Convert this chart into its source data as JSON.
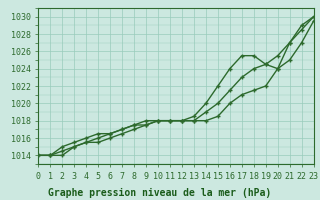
{
  "title": "Graphe pression niveau de la mer (hPa)",
  "xlabel_hours": [
    0,
    1,
    2,
    3,
    4,
    5,
    6,
    7,
    8,
    9,
    10,
    11,
    12,
    13,
    14,
    15,
    16,
    17,
    18,
    19,
    20,
    21,
    22,
    23
  ],
  "line1": [
    1014,
    1014,
    1014,
    1015,
    1015.5,
    1015.5,
    1016,
    1016.5,
    1017,
    1017.5,
    1018,
    1018,
    1018,
    1018,
    1018,
    1018.5,
    1020,
    1021,
    1021.5,
    1022,
    1024,
    1027,
    1029,
    1030
  ],
  "line2": [
    1014,
    1014,
    1015,
    1015.5,
    1016,
    1016.5,
    1016.5,
    1017,
    1017.5,
    1017.5,
    1018,
    1018,
    1018,
    1018,
    1019,
    1020,
    1021.5,
    1023,
    1024,
    1024.5,
    1025.5,
    1027,
    1028.5,
    1030
  ],
  "line3": [
    1014,
    1014,
    1014.5,
    1015,
    1015.5,
    1016,
    1016.5,
    1017,
    1017.5,
    1018,
    1018,
    1018,
    1018,
    1018.5,
    1020,
    1022,
    1024,
    1025.5,
    1025.5,
    1024.5,
    1024,
    1025,
    1027,
    1029.5
  ],
  "line_color": "#2d6a2d",
  "marker": "+",
  "bg_color": "#cce8e0",
  "grid_color": "#99ccbb",
  "ylim": [
    1013,
    1031
  ],
  "yticks": [
    1014,
    1016,
    1018,
    1020,
    1022,
    1024,
    1026,
    1028,
    1030
  ],
  "title_color": "#1a5c1a",
  "title_fontsize": 7,
  "tick_fontsize": 6,
  "linewidth": 1.0,
  "markersize": 3.5,
  "figsize": [
    3.2,
    2.0
  ],
  "dpi": 100
}
